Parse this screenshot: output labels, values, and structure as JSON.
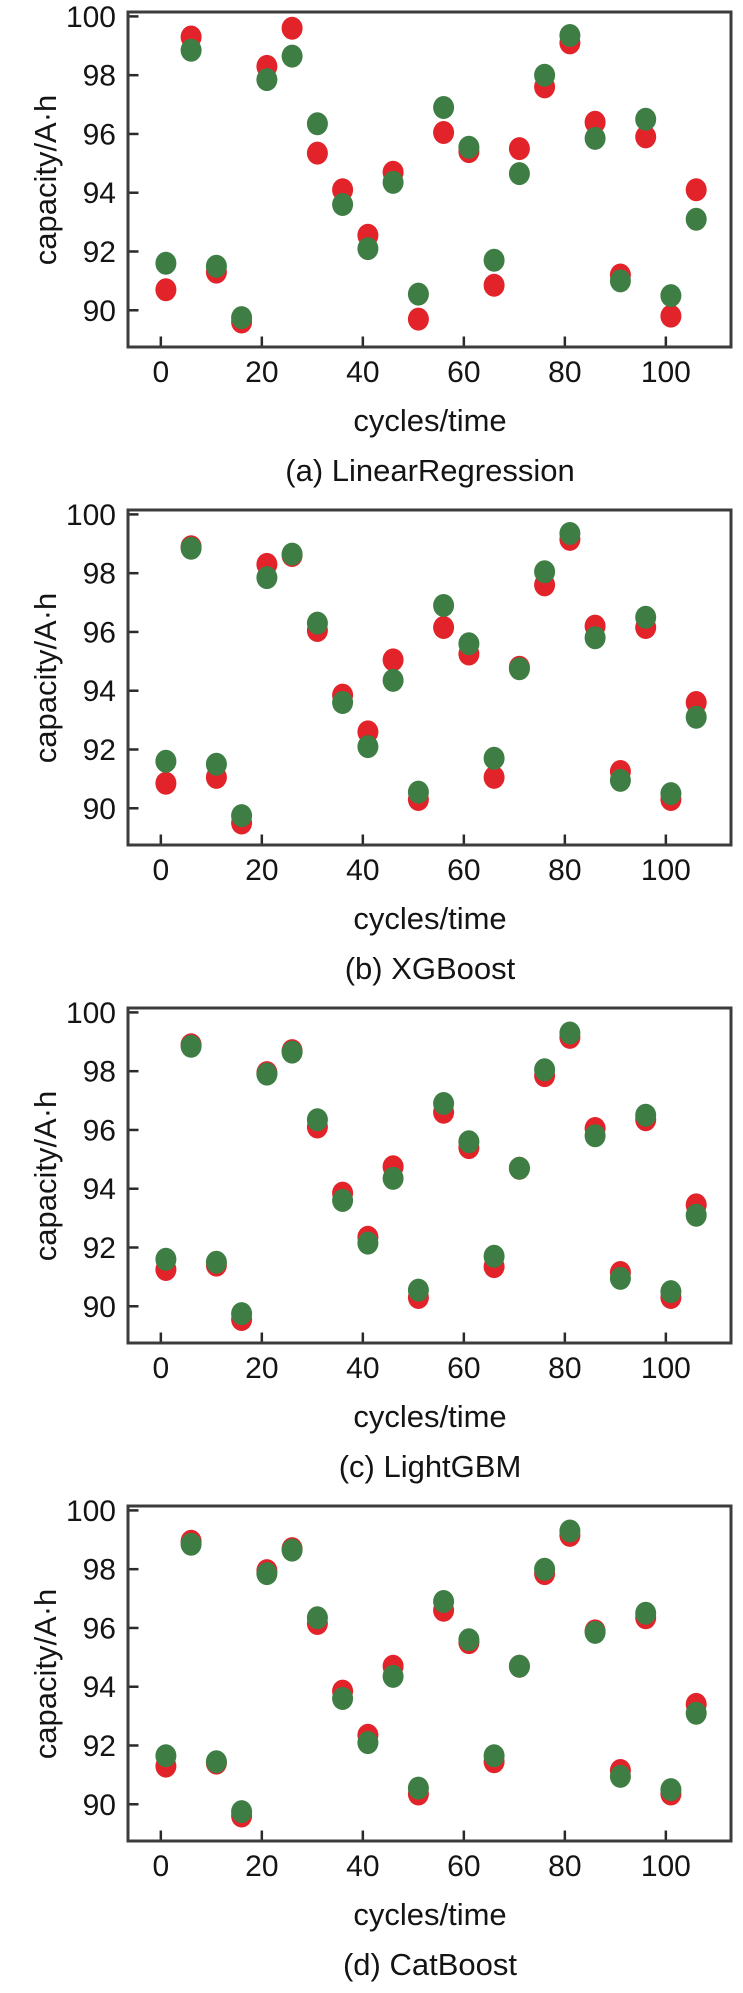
{
  "page": {
    "background": "#ffffff"
  },
  "colors": {
    "axis_frame": "#3c3c3c",
    "tick": "#2a2a2a",
    "text": "#141414",
    "red_marker": "#e2232a",
    "green_marker": "#3e7e44"
  },
  "chart_data": [
    {
      "type": "scatter",
      "caption": "(a) LinearRegression",
      "xlabel": "cycles/time",
      "ylabel": "capacity/A·h",
      "x_ticks": [
        0,
        20,
        40,
        60,
        80,
        100
      ],
      "y_ticks": [
        90,
        92,
        94,
        96,
        98,
        100
      ],
      "xlim": [
        -6.5,
        112.9
      ],
      "ylim": [
        88.75,
        100.15
      ],
      "grid": false,
      "legend": "none",
      "x": [
        1,
        6,
        11,
        16,
        21,
        26,
        31,
        36,
        41,
        46,
        51,
        56,
        61,
        66,
        71,
        76,
        81,
        86,
        91,
        96,
        101,
        106
      ],
      "series": [
        {
          "name": "red-series",
          "color": "#e2232a",
          "values": [
            90.7,
            99.3,
            91.3,
            89.6,
            98.3,
            99.6,
            95.35,
            94.1,
            92.55,
            94.7,
            89.7,
            96.05,
            95.4,
            90.85,
            95.5,
            97.6,
            99.1,
            96.4,
            91.2,
            95.9,
            89.8,
            94.1
          ]
        },
        {
          "name": "green-series",
          "color": "#3e7e44",
          "values": [
            91.6,
            98.85,
            91.5,
            89.75,
            97.85,
            98.65,
            96.35,
            93.6,
            92.1,
            94.35,
            90.55,
            96.9,
            95.55,
            91.7,
            94.65,
            98.0,
            99.35,
            95.85,
            91.0,
            96.5,
            90.5,
            93.1
          ]
        }
      ]
    },
    {
      "type": "scatter",
      "caption": "(b) XGBoost",
      "xlabel": "cycles/time",
      "ylabel": "capacity/A·h",
      "x_ticks": [
        0,
        20,
        40,
        60,
        80,
        100
      ],
      "y_ticks": [
        90,
        92,
        94,
        96,
        98,
        100
      ],
      "xlim": [
        -6.5,
        112.9
      ],
      "ylim": [
        88.75,
        100.15
      ],
      "grid": false,
      "legend": "none",
      "x": [
        1,
        6,
        11,
        16,
        21,
        26,
        31,
        36,
        41,
        46,
        51,
        56,
        61,
        66,
        71,
        76,
        81,
        86,
        91,
        96,
        101,
        106
      ],
      "series": [
        {
          "name": "red-series",
          "color": "#e2232a",
          "values": [
            90.85,
            98.9,
            91.05,
            89.5,
            98.3,
            98.6,
            96.05,
            93.85,
            92.6,
            95.05,
            90.3,
            96.15,
            95.25,
            91.05,
            94.8,
            97.6,
            99.15,
            96.2,
            91.25,
            96.15,
            90.3,
            93.6
          ]
        },
        {
          "name": "green-series",
          "color": "#3e7e44",
          "values": [
            91.6,
            98.85,
            91.5,
            89.75,
            97.85,
            98.65,
            96.3,
            93.6,
            92.1,
            94.35,
            90.55,
            96.9,
            95.6,
            91.7,
            94.75,
            98.05,
            99.35,
            95.8,
            90.95,
            96.5,
            90.5,
            93.1
          ]
        }
      ]
    },
    {
      "type": "scatter",
      "caption": "(c) LightGBM",
      "xlabel": "cycles/time",
      "ylabel": "capacity/A·h",
      "x_ticks": [
        0,
        20,
        40,
        60,
        80,
        100
      ],
      "y_ticks": [
        90,
        92,
        94,
        96,
        98,
        100
      ],
      "xlim": [
        -6.5,
        112.9
      ],
      "ylim": [
        88.75,
        100.15
      ],
      "grid": false,
      "legend": "none",
      "x": [
        1,
        6,
        11,
        16,
        21,
        26,
        31,
        36,
        41,
        46,
        51,
        56,
        61,
        66,
        71,
        76,
        81,
        86,
        91,
        96,
        101,
        106
      ],
      "series": [
        {
          "name": "red-series",
          "color": "#e2232a",
          "values": [
            91.25,
            98.9,
            91.4,
            89.55,
            97.95,
            98.7,
            96.1,
            93.85,
            92.35,
            94.75,
            90.3,
            96.6,
            95.4,
            91.35,
            94.7,
            97.85,
            99.15,
            96.05,
            91.15,
            96.35,
            90.3,
            93.45
          ]
        },
        {
          "name": "green-series",
          "color": "#3e7e44",
          "values": [
            91.6,
            98.85,
            91.5,
            89.75,
            97.9,
            98.65,
            96.35,
            93.6,
            92.15,
            94.35,
            90.55,
            96.9,
            95.6,
            91.7,
            94.7,
            98.05,
            99.3,
            95.8,
            90.95,
            96.5,
            90.5,
            93.1
          ]
        }
      ]
    },
    {
      "type": "scatter",
      "caption": "(d) CatBoost",
      "xlabel": "cycles/time",
      "ylabel": "capacity/A·h",
      "x_ticks": [
        0,
        20,
        40,
        60,
        80,
        100
      ],
      "y_ticks": [
        90,
        92,
        94,
        96,
        98,
        100
      ],
      "xlim": [
        -6.5,
        112.9
      ],
      "ylim": [
        88.75,
        100.15
      ],
      "grid": false,
      "legend": "none",
      "x": [
        1,
        6,
        11,
        16,
        21,
        26,
        31,
        36,
        41,
        46,
        51,
        56,
        61,
        66,
        71,
        76,
        81,
        86,
        91,
        96,
        101,
        106
      ],
      "series": [
        {
          "name": "red-series",
          "color": "#e2232a",
          "values": [
            91.3,
            98.95,
            91.4,
            89.6,
            97.95,
            98.7,
            96.15,
            93.85,
            92.35,
            94.7,
            90.35,
            96.6,
            95.5,
            91.45,
            94.7,
            97.85,
            99.15,
            95.9,
            91.15,
            96.35,
            90.35,
            93.4
          ]
        },
        {
          "name": "green-series",
          "color": "#3e7e44",
          "values": [
            91.65,
            98.85,
            91.45,
            89.75,
            97.85,
            98.65,
            96.35,
            93.6,
            92.1,
            94.35,
            90.55,
            96.9,
            95.6,
            91.65,
            94.7,
            98.0,
            99.3,
            95.85,
            90.95,
            96.5,
            90.5,
            93.1
          ]
        }
      ]
    }
  ]
}
